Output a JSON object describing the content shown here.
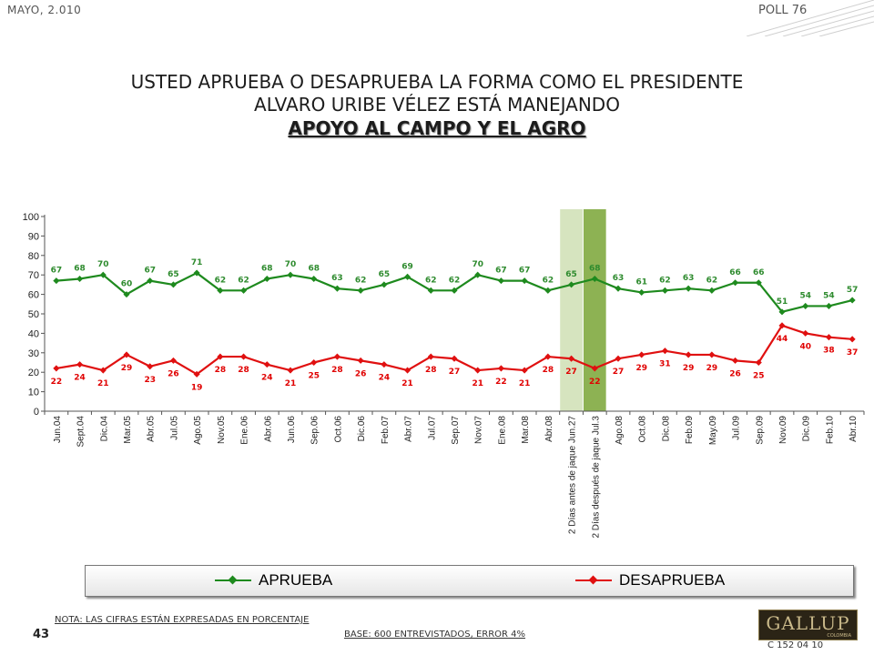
{
  "header": {
    "date": "MAYO, 2.010",
    "poll": "POLL 76"
  },
  "title": {
    "line1": "USTED APRUEBA O DESAPRUEBA LA FORMA COMO EL PRESIDENTE",
    "line2": "ALVARO URIBE VÉLEZ ESTÁ MANEJANDO",
    "line3": "APOYO AL CAMPO Y EL AGRO"
  },
  "footer": {
    "note": "NOTA: LAS CIFRAS ESTÁN EXPRESADAS EN PORCENTAJE",
    "base": "BASE: 600 ENTREVISTADOS, ERROR 4%",
    "page": "43",
    "code": "C 152 04 10",
    "logo": "GALLUP",
    "logo_sub": "COLOMBIA"
  },
  "colors": {
    "aprueba": "#1e8a1e",
    "desaprueba": "#e01010",
    "label_aprueba": "#2e8b2e",
    "label_desaprueba": "#e00000",
    "highlight_light": "#d6e4bf",
    "highlight_dark": "#8db253"
  },
  "chart_data": {
    "type": "line",
    "categories": [
      "Jun.04",
      "Sept.04",
      "Dic.04",
      "Mar.05",
      "Abr.05",
      "Jul.05",
      "Ago.05",
      "Nov.05",
      "Ene.06",
      "Abr.06",
      "Jun.06",
      "Sep.06",
      "Oct.06",
      "Dic.06",
      "Feb.07",
      "Abr.07",
      "Jul.07",
      "Sep.07",
      "Nov.07",
      "Ene.08",
      "Mar.08",
      "Abr.08",
      "2 Días antes de jaque Jun.27",
      "2 Días después de jaque Jul.3",
      "Ago.08",
      "Oct.08",
      "Dic.08",
      "Feb.09",
      "May.09",
      "Jul.09",
      "Sep.09",
      "Nov.09",
      "Dic.09",
      "Feb.10",
      "Abr.10"
    ],
    "series": [
      {
        "name": "APRUEBA",
        "values": [
          67,
          68,
          70,
          60,
          67,
          65,
          71,
          62,
          62,
          68,
          70,
          68,
          63,
          62,
          65,
          69,
          62,
          62,
          70,
          67,
          67,
          62,
          65,
          68,
          63,
          61,
          62,
          63,
          62,
          66,
          66,
          51,
          54,
          54,
          57
        ]
      },
      {
        "name": "DESAPRUEBA",
        "values": [
          22,
          24,
          21,
          29,
          23,
          26,
          19,
          28,
          28,
          24,
          21,
          25,
          28,
          26,
          24,
          21,
          28,
          27,
          21,
          22,
          21,
          28,
          27,
          22,
          27,
          29,
          31,
          29,
          29,
          26,
          25,
          44,
          40,
          38,
          37
        ]
      }
    ],
    "highlighted_categories": [
      "2 Días antes de jaque Jun.27",
      "2 Días después de jaque Jul.3"
    ],
    "ylim": [
      0,
      100
    ],
    "yticks": [
      0,
      10,
      20,
      30,
      40,
      50,
      60,
      70,
      80,
      90,
      100
    ],
    "grid": false,
    "legend": "bottom"
  }
}
